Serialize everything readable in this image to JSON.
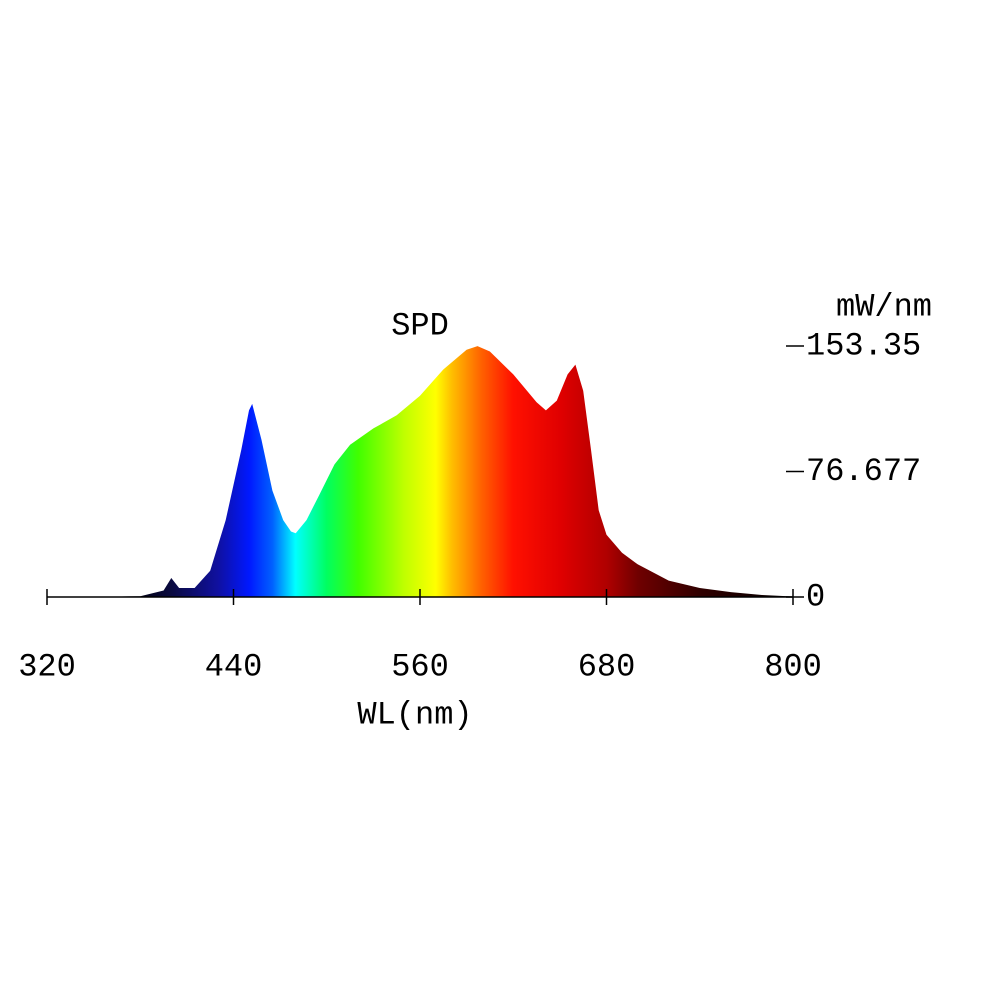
{
  "chart_data": {
    "type": "area",
    "title": "SPD",
    "xlabel": "WL(nm)",
    "ylabel": "mW/nm",
    "x": [
      320,
      340,
      360,
      380,
      395,
      400,
      405,
      415,
      425,
      435,
      445,
      450,
      452,
      458,
      465,
      472,
      477,
      480,
      487,
      495,
      505,
      515,
      530,
      545,
      560,
      575,
      590,
      597,
      605,
      620,
      635,
      641,
      648,
      655,
      660,
      665,
      670,
      675,
      680,
      690,
      700,
      720,
      740,
      760,
      780,
      800
    ],
    "values": [
      0,
      0,
      0.2,
      0.5,
      4,
      11.6,
      5.5,
      5.5,
      16,
      47,
      90,
      114,
      118,
      96,
      65,
      47,
      40,
      39,
      47,
      62,
      81,
      93,
      103,
      111,
      123,
      139,
      151,
      153.3,
      150,
      136,
      119,
      114,
      120,
      136,
      142,
      126,
      90,
      53,
      38,
      27,
      20,
      10,
      5.5,
      3,
      1.2,
      0.3
    ],
    "xlim": [
      320,
      800
    ],
    "xticks": [
      320,
      440,
      560,
      680,
      800
    ],
    "ylim": [
      0,
      153.35
    ],
    "yticks": [
      0,
      76.677,
      153.35
    ]
  }
}
